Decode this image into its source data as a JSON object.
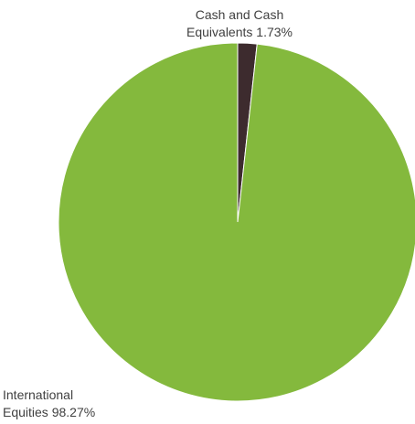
{
  "chart_data": {
    "type": "pie",
    "title": "",
    "start_angle_deg": 0,
    "direction": "clockwise",
    "slices": [
      {
        "label_line1": "Cash and Cash",
        "label_line2": "Equivalents 1.73%",
        "value": 1.73,
        "color": "#3d2b2e"
      },
      {
        "label_line1": "International",
        "label_line2": "Equities 98.27%",
        "value": 98.27,
        "color": "#84b93d"
      }
    ],
    "legend": "none",
    "data_labels": "outside"
  }
}
